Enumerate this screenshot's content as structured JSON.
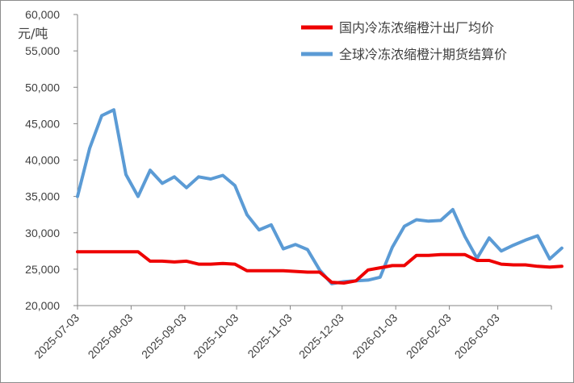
{
  "chart_data": {
    "type": "line",
    "ylabel": "元/吨",
    "ylim": [
      20000,
      60000
    ],
    "y_ticks": [
      "20,000",
      "25,000",
      "30,000",
      "35,000",
      "40,000",
      "45,000",
      "50,000",
      "55,000",
      "60,000"
    ],
    "x_tick_labels": [
      "2025-07-03",
      "2025-08-03",
      "2025-09-03",
      "2025-10-03",
      "2025-11-03",
      "2025-12-03",
      "2026-01-03",
      "2026-02-03",
      "2026-03-03"
    ],
    "x_start": "2025-07-03",
    "x_end": "2026-04-03",
    "grid": false,
    "legend_position": "top-right",
    "series": [
      {
        "name": "国内冷冻浓缩橙汁出厂均价",
        "color": "#ee0000",
        "points": [
          [
            "2025-07-03",
            27400
          ],
          [
            "2025-07-10",
            27400
          ],
          [
            "2025-07-17",
            27400
          ],
          [
            "2025-07-24",
            27400
          ],
          [
            "2025-07-31",
            27400
          ],
          [
            "2025-08-07",
            27400
          ],
          [
            "2025-08-14",
            26100
          ],
          [
            "2025-08-21",
            26100
          ],
          [
            "2025-08-28",
            26000
          ],
          [
            "2025-09-04",
            26100
          ],
          [
            "2025-09-11",
            25700
          ],
          [
            "2025-09-18",
            25700
          ],
          [
            "2025-09-25",
            25800
          ],
          [
            "2025-10-02",
            25700
          ],
          [
            "2025-10-09",
            24800
          ],
          [
            "2025-10-16",
            24800
          ],
          [
            "2025-10-23",
            24800
          ],
          [
            "2025-10-30",
            24800
          ],
          [
            "2025-11-06",
            24700
          ],
          [
            "2025-11-13",
            24600
          ],
          [
            "2025-11-20",
            24600
          ],
          [
            "2025-11-27",
            23200
          ],
          [
            "2025-12-04",
            23100
          ],
          [
            "2025-12-11",
            23400
          ],
          [
            "2025-12-18",
            24900
          ],
          [
            "2025-12-25",
            25200
          ],
          [
            "2026-01-01",
            25500
          ],
          [
            "2026-01-08",
            25500
          ],
          [
            "2026-01-15",
            26900
          ],
          [
            "2026-01-22",
            26900
          ],
          [
            "2026-01-29",
            27000
          ],
          [
            "2026-02-05",
            27000
          ],
          [
            "2026-02-12",
            27000
          ],
          [
            "2026-02-19",
            26200
          ],
          [
            "2026-02-26",
            26200
          ],
          [
            "2026-03-05",
            25700
          ],
          [
            "2026-03-12",
            25600
          ],
          [
            "2026-03-19",
            25600
          ],
          [
            "2026-03-26",
            25400
          ],
          [
            "2026-04-02",
            25300
          ],
          [
            "2026-04-09",
            25400
          ]
        ]
      },
      {
        "name": "全球冷冻浓缩橙汁期货结算价",
        "color": "#5b9bd5",
        "points": [
          [
            "2025-07-03",
            35000
          ],
          [
            "2025-07-10",
            41600
          ],
          [
            "2025-07-17",
            46100
          ],
          [
            "2025-07-24",
            46900
          ],
          [
            "2025-07-31",
            38000
          ],
          [
            "2025-08-07",
            35000
          ],
          [
            "2025-08-14",
            38600
          ],
          [
            "2025-08-21",
            36800
          ],
          [
            "2025-08-28",
            37700
          ],
          [
            "2025-09-04",
            36200
          ],
          [
            "2025-09-11",
            37700
          ],
          [
            "2025-09-18",
            37400
          ],
          [
            "2025-09-25",
            37900
          ],
          [
            "2025-10-02",
            36500
          ],
          [
            "2025-10-09",
            32500
          ],
          [
            "2025-10-16",
            30400
          ],
          [
            "2025-10-23",
            31100
          ],
          [
            "2025-10-30",
            27800
          ],
          [
            "2025-11-06",
            28400
          ],
          [
            "2025-11-13",
            27700
          ],
          [
            "2025-11-20",
            24900
          ],
          [
            "2025-11-27",
            23000
          ],
          [
            "2025-12-04",
            23300
          ],
          [
            "2025-12-11",
            23400
          ],
          [
            "2025-12-18",
            23500
          ],
          [
            "2025-12-25",
            23900
          ],
          [
            "2026-01-01",
            28000
          ],
          [
            "2026-01-08",
            30900
          ],
          [
            "2026-01-15",
            31800
          ],
          [
            "2026-01-22",
            31600
          ],
          [
            "2026-01-29",
            31700
          ],
          [
            "2026-02-05",
            33200
          ],
          [
            "2026-02-12",
            29500
          ],
          [
            "2026-02-19",
            26500
          ],
          [
            "2026-02-26",
            29300
          ],
          [
            "2026-03-05",
            27500
          ],
          [
            "2026-03-12",
            28300
          ],
          [
            "2026-03-19",
            29000
          ],
          [
            "2026-03-26",
            29600
          ],
          [
            "2026-04-02",
            26400
          ],
          [
            "2026-04-09",
            27900
          ]
        ]
      }
    ]
  }
}
